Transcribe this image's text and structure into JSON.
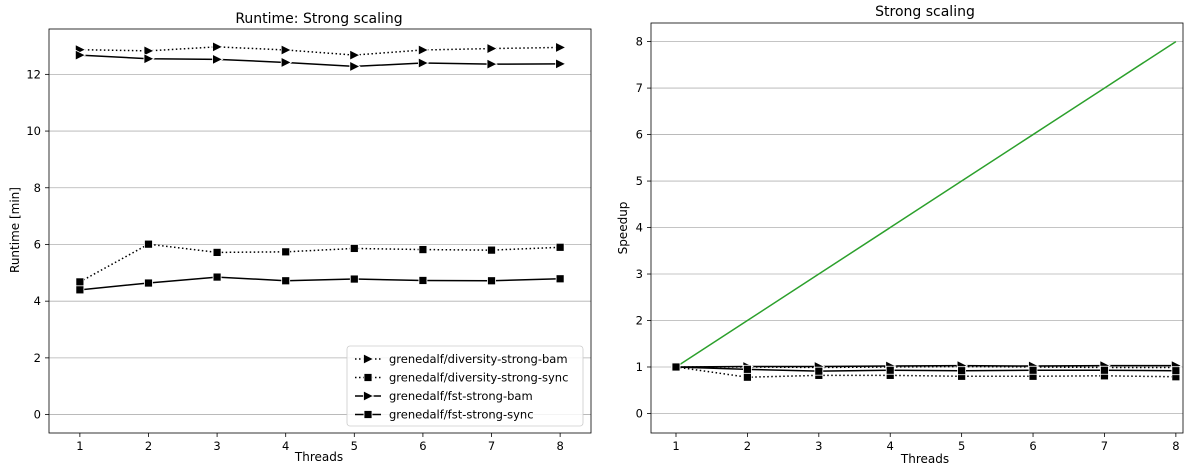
{
  "chart_data": [
    {
      "type": "line",
      "title": "Runtime:  Strong scaling",
      "xlabel": "Threads",
      "ylabel": "Runtime  [min]",
      "x": [
        1,
        2,
        3,
        4,
        5,
        6,
        7,
        8
      ],
      "xticks": [
        "1",
        "2",
        "3",
        "4",
        "5",
        "6",
        "7",
        "8"
      ],
      "yticks": [
        "0",
        "2",
        "4",
        "6",
        "8",
        "10",
        "12"
      ],
      "ylim": [
        -0.65,
        13.6
      ],
      "xlim": [
        0.55,
        8.45
      ],
      "grid": "horizontal",
      "legend_position": "lower-right",
      "series": [
        {
          "name": "grenedalf/diversity-strong-bam",
          "style": "dotted",
          "marker": "triangle-right",
          "values": [
            12.87,
            12.83,
            12.97,
            12.86,
            12.68,
            12.86,
            12.91,
            12.95
          ]
        },
        {
          "name": "grenedalf/diversity-strong-sync",
          "style": "dotted",
          "marker": "square",
          "values": [
            4.68,
            6.01,
            5.72,
            5.74,
            5.86,
            5.82,
            5.8,
            5.9
          ]
        },
        {
          "name": "grenedalf/fst-strong-bam",
          "style": "solid",
          "marker": "triangle-right",
          "values": [
            12.68,
            12.55,
            12.53,
            12.42,
            12.28,
            12.4,
            12.36,
            12.37
          ]
        },
        {
          "name": "grenedalf/fst-strong-sync",
          "style": "solid",
          "marker": "square",
          "values": [
            4.4,
            4.64,
            4.85,
            4.72,
            4.78,
            4.73,
            4.72,
            4.79
          ]
        }
      ]
    },
    {
      "type": "line",
      "title": "Strong scaling",
      "xlabel": "Threads",
      "ylabel": "Speedup",
      "x": [
        1,
        2,
        3,
        4,
        5,
        6,
        7,
        8
      ],
      "xticks": [
        "1",
        "2",
        "3",
        "4",
        "5",
        "6",
        "7",
        "8"
      ],
      "yticks": [
        "0",
        "1",
        "2",
        "3",
        "4",
        "5",
        "6",
        "7",
        "8"
      ],
      "ylim": [
        -0.42,
        8.4
      ],
      "xlim": [
        0.65,
        8.1
      ],
      "grid": "horizontal",
      "series": [
        {
          "style": "solid",
          "color": "#2ca02c",
          "marker": "none",
          "values": [
            1,
            2,
            3,
            4,
            5,
            6,
            7,
            8
          ]
        },
        {
          "style": "dotted",
          "marker": "triangle-right",
          "values": [
            1.0,
            1.0,
            0.99,
            1.0,
            1.01,
            1.0,
            0.99,
            0.99
          ]
        },
        {
          "style": "dotted",
          "marker": "square",
          "values": [
            1.0,
            0.78,
            0.82,
            0.82,
            0.8,
            0.8,
            0.81,
            0.79
          ]
        },
        {
          "style": "solid",
          "marker": "triangle-right",
          "values": [
            1.0,
            1.01,
            1.01,
            1.02,
            1.03,
            1.02,
            1.03,
            1.03
          ]
        },
        {
          "style": "solid",
          "marker": "square",
          "values": [
            1.0,
            0.95,
            0.91,
            0.93,
            0.92,
            0.93,
            0.93,
            0.92
          ]
        }
      ]
    }
  ]
}
